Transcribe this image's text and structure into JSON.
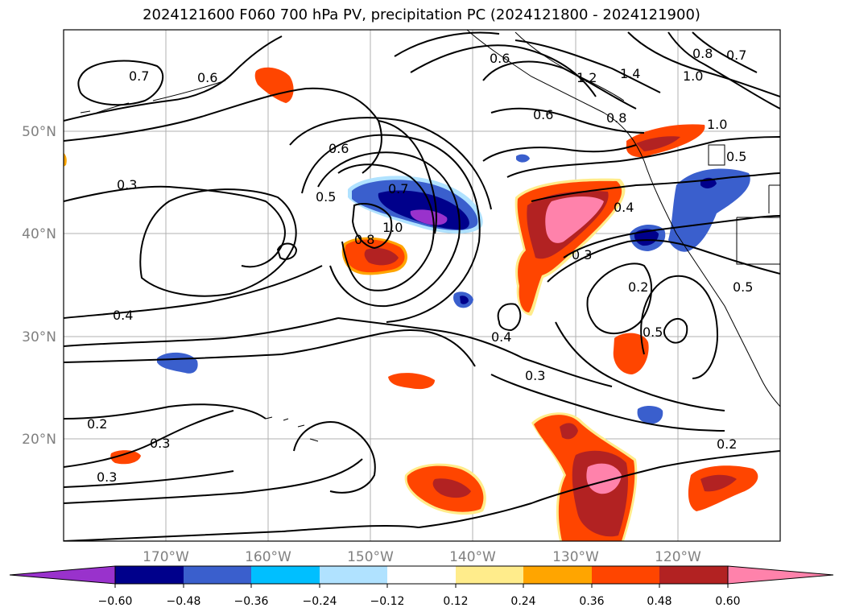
{
  "title": "2024121600 F060 700 hPa PV, precipitation PC (2024121800 - 2024121900)",
  "lat_labels": [
    "50°N",
    "40°N",
    "30°N",
    "20°N"
  ],
  "lon_labels": [
    "170°W",
    "160°W",
    "150°W",
    "140°W",
    "130°W",
    "120°W"
  ],
  "contour_labels": [
    "0.7",
    "0.6",
    "0.3",
    "0.6",
    "0.5",
    "0.7",
    "1.0",
    "0.8",
    "0.4",
    "0.2",
    "0.3",
    "0.3",
    "0.6",
    "1.2",
    "1.4",
    "0.8",
    "0.7",
    "1.0",
    "1.0",
    "0.8",
    "0.5",
    "0.4",
    "0.3",
    "0.2",
    "0.5",
    "0.4",
    "0.3",
    "0.2",
    "0.5",
    "0.6"
  ],
  "colorbar": {
    "colors": [
      "#9932CC",
      "#00008B",
      "#3A5FCD",
      "#00BFFF",
      "#B0E2FF",
      "#FFFFFF",
      "#FFEC8B",
      "#FFA500",
      "#FF4500",
      "#B22222",
      "#FF82AB"
    ],
    "tick_labels": [
      "−0.60",
      "−0.48",
      "−0.36",
      "−0.24",
      "−0.12",
      "0.12",
      "0.24",
      "0.36",
      "0.48",
      "0.60"
    ]
  }
}
